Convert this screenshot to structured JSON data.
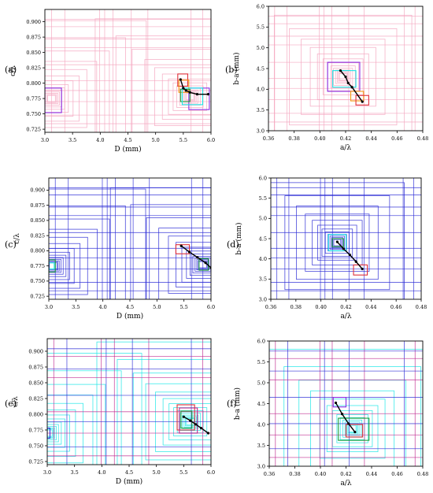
{
  "figure": {
    "panels": [
      {
        "label": "(a)",
        "xlabel": "D (mm)",
        "ylabel": "c/λ",
        "xticks": [
          "3.0",
          "3.5",
          "4.0",
          "4.5",
          "5.0",
          "5.5",
          "6.0"
        ],
        "yticks": [
          "0.725",
          "0.750",
          "0.775",
          "0.800",
          "0.825",
          "0.850",
          "0.875",
          "0.900"
        ]
      },
      {
        "label": "(b)",
        "xlabel": "a/λ",
        "ylabel": "b-a (mm)",
        "xticks": [
          "0.36",
          "0.38",
          "0.40",
          "0.42",
          "0.44",
          "0.46",
          "0.48"
        ],
        "yticks": [
          "3.0",
          "3.5",
          "4.0",
          "4.5",
          "5.0",
          "5.5",
          "6.0"
        ]
      },
      {
        "label": "(c)",
        "xlabel": "D (mm)",
        "ylabel": "c/λ",
        "xticks": [
          "3.0",
          "3.5",
          "4.0",
          "4.5",
          "5.0",
          "5.5",
          "6.0"
        ],
        "yticks": [
          "0.725",
          "0.750",
          "0.775",
          "0.800",
          "0.825",
          "0.850",
          "0.875",
          "0.900"
        ]
      },
      {
        "label": "(d)",
        "xlabel": "a/λ",
        "ylabel": "b-a (mm)",
        "xticks": [
          "0.36",
          "0.38",
          "0.40",
          "0.42",
          "0.44",
          "0.46",
          "0.48"
        ],
        "yticks": [
          "3.0",
          "3.5",
          "4.0",
          "4.5",
          "5.0",
          "5.5",
          "6.0"
        ]
      },
      {
        "label": "(e)",
        "xlabel": "D (mm)",
        "ylabel": "c/λ",
        "xticks": [
          "3.0",
          "3.5",
          "4.0",
          "4.5",
          "5.0",
          "5.5",
          "6.0"
        ],
        "yticks": [
          "0.725",
          "0.750",
          "0.775",
          "0.800",
          "0.825",
          "0.850",
          "0.875",
          "0.900"
        ]
      },
      {
        "label": "(f)",
        "xlabel": "a/λ",
        "ylabel": "b-a (mm)",
        "xticks": [
          "0.36",
          "0.38",
          "0.40",
          "0.42",
          "0.44",
          "0.46",
          "0.48"
        ],
        "yticks": [
          "3.0",
          "3.5",
          "4.0",
          "4.5",
          "5.0",
          "5.5",
          "6.0"
        ]
      }
    ]
  },
  "colors": {
    "pink": "#f4a6bf",
    "blue": "#2b2bd6",
    "cyan": "#19e6e6",
    "magenta": "#c0298f",
    "purple": "#8a2be2",
    "green": "#1f9e3a",
    "red": "#e0303a",
    "orange": "#f39c12",
    "path": "#000000"
  },
  "chart_data": [
    {
      "type": "line",
      "panel": "(a)",
      "xlabel": "D (mm)",
      "ylabel": "c/λ",
      "xlim": [
        3.0,
        6.0
      ],
      "ylim": [
        0.72,
        0.92
      ],
      "grid": false,
      "search_boxes": "nested rectangles (pink) around optima near (3.1, 0.775) and (5.6, 0.78)",
      "highlighted_boxes": [
        {
          "color": "purple",
          "x": [
            3.0,
            3.3
          ],
          "y": [
            0.752,
            0.792
          ]
        },
        {
          "color": "purple",
          "x": [
            5.6,
            5.97
          ],
          "y": [
            0.757,
            0.792
          ]
        },
        {
          "color": "red",
          "x": [
            5.4,
            5.58
          ],
          "y": [
            0.795,
            0.815
          ]
        },
        {
          "color": "orange",
          "x": [
            5.42,
            5.6
          ],
          "y": [
            0.785,
            0.805
          ]
        },
        {
          "color": "green",
          "x": [
            5.45,
            5.62
          ],
          "y": [
            0.77,
            0.79
          ]
        },
        {
          "color": "cyan",
          "x": [
            5.48,
            5.85
          ],
          "y": [
            0.765,
            0.792
          ]
        }
      ],
      "path": {
        "x": [
          5.45,
          5.5,
          5.55,
          5.62,
          5.75,
          5.95
        ],
        "y": [
          0.806,
          0.792,
          0.788,
          0.785,
          0.782,
          0.782
        ]
      }
    },
    {
      "type": "line",
      "panel": "(b)",
      "xlabel": "a/λ",
      "ylabel": "b-a (mm)",
      "xlim": [
        0.36,
        0.48
      ],
      "ylim": [
        3.0,
        6.0
      ],
      "grid": false,
      "search_boxes": "nested rectangles (pink) centred near (0.42, 4.3)",
      "highlighted_boxes": [
        {
          "color": "purple",
          "x": [
            0.406,
            0.431
          ],
          "y": [
            3.95,
            4.65
          ]
        },
        {
          "color": "cyan",
          "x": [
            0.41,
            0.428
          ],
          "y": [
            4.05,
            4.45
          ]
        },
        {
          "color": "orange",
          "x": [
            0.424,
            0.434
          ],
          "y": [
            3.72,
            3.95
          ]
        },
        {
          "color": "red",
          "x": [
            0.428,
            0.438
          ],
          "y": [
            3.62,
            3.85
          ]
        }
      ],
      "path": {
        "x": [
          0.416,
          0.42,
          0.422,
          0.425,
          0.433
        ],
        "y": [
          4.45,
          4.3,
          4.15,
          4.05,
          3.7
        ]
      }
    },
    {
      "type": "line",
      "panel": "(c)",
      "xlabel": "D (mm)",
      "ylabel": "c/λ",
      "xlim": [
        3.0,
        6.0
      ],
      "ylim": [
        0.72,
        0.92
      ],
      "grid": false,
      "search_boxes": "nested rectangles (blue) around optima near (3.1, 0.775) and (5.85, 0.775)",
      "highlighted_boxes": [
        {
          "color": "green",
          "x": [
            3.0,
            3.12
          ],
          "y": [
            0.765,
            0.785
          ]
        },
        {
          "color": "cyan",
          "x": [
            3.0,
            3.1
          ],
          "y": [
            0.77,
            0.78
          ]
        },
        {
          "color": "red",
          "x": [
            5.35,
            5.6
          ],
          "y": [
            0.795,
            0.81
          ]
        },
        {
          "color": "green",
          "x": [
            5.78,
            5.95
          ],
          "y": [
            0.768,
            0.787
          ]
        }
      ],
      "path": {
        "x": [
          5.45,
          5.6,
          5.75,
          5.9,
          6.0
        ],
        "y": [
          0.808,
          0.798,
          0.789,
          0.78,
          0.772
        ]
      }
    },
    {
      "type": "line",
      "panel": "(d)",
      "xlabel": "a/λ",
      "ylabel": "b-a (mm)",
      "xlim": [
        0.36,
        0.48
      ],
      "ylim": [
        3.0,
        6.0
      ],
      "grid": false,
      "search_boxes": "nested rectangles (blue) centred near (0.413, 4.4)",
      "highlighted_boxes": [
        {
          "color": "cyan",
          "x": [
            0.406,
            0.42
          ],
          "y": [
            4.2,
            4.6
          ]
        },
        {
          "color": "green",
          "x": [
            0.409,
            0.418
          ],
          "y": [
            4.3,
            4.5
          ]
        },
        {
          "color": "red",
          "x": [
            0.426,
            0.437
          ],
          "y": [
            3.6,
            3.85
          ]
        }
      ],
      "path": {
        "x": [
          0.413,
          0.418,
          0.423,
          0.428,
          0.433
        ],
        "y": [
          4.42,
          4.25,
          4.1,
          3.93,
          3.75
        ]
      }
    },
    {
      "type": "line",
      "panel": "(e)",
      "xlabel": "D (mm)",
      "ylabel": "c/λ",
      "xlim": [
        3.0,
        6.0
      ],
      "ylim": [
        0.72,
        0.92
      ],
      "grid": false,
      "search_boxes": "nested rectangles (cyan) with magenta and blue line grid; optima near (3.0, 0.77) and (5.7, 0.785)",
      "highlighted_boxes": [
        {
          "color": "blue",
          "x": [
            3.0,
            3.05
          ],
          "y": [
            0.762,
            0.778
          ]
        },
        {
          "color": "red",
          "x": [
            5.38,
            5.7
          ],
          "y": [
            0.775,
            0.815
          ]
        },
        {
          "color": "green",
          "x": [
            5.45,
            5.65
          ],
          "y": [
            0.778,
            0.805
          ]
        },
        {
          "color": "magenta",
          "x": [
            5.42,
            5.75
          ],
          "y": [
            0.77,
            0.81
          ]
        }
      ],
      "path": {
        "x": [
          5.5,
          5.62,
          5.72,
          5.82,
          5.95
        ],
        "y": [
          0.796,
          0.79,
          0.784,
          0.778,
          0.77
        ]
      }
    },
    {
      "type": "line",
      "panel": "(f)",
      "xlabel": "a/λ",
      "ylabel": "b-a (mm)",
      "xlim": [
        0.36,
        0.48
      ],
      "ylim": [
        3.0,
        6.0
      ],
      "grid": false,
      "search_boxes": "nested rectangles (cyan) with magenta and blue line grid; centred near (0.425, 3.9)",
      "highlighted_boxes": [
        {
          "color": "purple",
          "x": [
            0.41,
            0.42
          ],
          "y": [
            4.42,
            4.65
          ]
        },
        {
          "color": "green",
          "x": [
            0.414,
            0.438
          ],
          "y": [
            3.62,
            4.15
          ]
        },
        {
          "color": "red",
          "x": [
            0.42,
            0.433
          ],
          "y": [
            3.7,
            4.0
          ]
        }
      ],
      "path": {
        "x": [
          0.412,
          0.417,
          0.422,
          0.427
        ],
        "y": [
          4.52,
          4.25,
          4.02,
          3.82
        ]
      }
    }
  ]
}
